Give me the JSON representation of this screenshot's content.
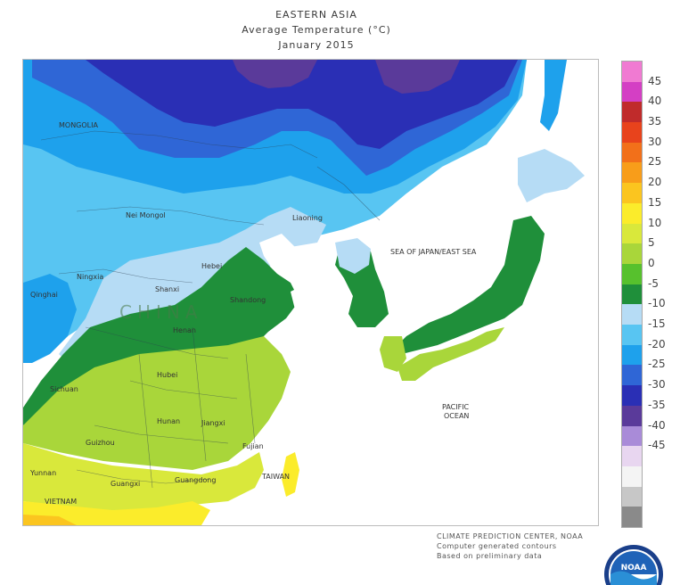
{
  "header": {
    "region": "EASTERN ASIA",
    "variable": "Average Temperature (°C)",
    "period": "January 2015"
  },
  "legend": {
    "unit": "°C",
    "ticks": [
      "45",
      "40",
      "35",
      "30",
      "25",
      "20",
      "15",
      "10",
      "5",
      "0",
      "-5",
      "-10",
      "-15",
      "-20",
      "-25",
      "-30",
      "-35",
      "-40",
      "-45"
    ],
    "bands": [
      {
        "color": "#f07ad2"
      },
      {
        "color": "#d43fc4"
      },
      {
        "color": "#c02b2b"
      },
      {
        "color": "#e8431c"
      },
      {
        "color": "#f2701a"
      },
      {
        "color": "#f89d1a"
      },
      {
        "color": "#fbc51f"
      },
      {
        "color": "#fbec2b"
      },
      {
        "color": "#d9e83b"
      },
      {
        "color": "#a9d63a"
      },
      {
        "color": "#57c12d"
      },
      {
        "color": "#1f8f3a"
      },
      {
        "color": "#b6dcf5"
      },
      {
        "color": "#58c5f2"
      },
      {
        "color": "#1ea1ec"
      },
      {
        "color": "#2f66d6"
      },
      {
        "color": "#2a2fb5"
      },
      {
        "color": "#5a3a9a"
      },
      {
        "color": "#a98bd8"
      },
      {
        "color": "#e8d6f0"
      },
      {
        "color": "#f4f4f4"
      },
      {
        "color": "#c7c7c7"
      },
      {
        "color": "#8a8a8a"
      }
    ]
  },
  "map": {
    "labels": {
      "mongolia": "MONGOLIA",
      "nei_mongol": "Nei Mongol",
      "liaoning": "Liaoning",
      "china": "CHINA",
      "qinghai": "Qinghai",
      "ningxia": "Ningxia",
      "shanxi": "Shanxi",
      "hebei": "Hebei",
      "shandong": "Shandong",
      "henan": "Henan",
      "sichuan": "Sichuan",
      "hubei": "Hubei",
      "hunan": "Hunan",
      "jiangxi": "Jiangxi",
      "guizhou": "Guizhou",
      "fujian": "Fujian",
      "yunnan": "Yunnan",
      "guangxi": "Guangxi",
      "guangdong": "Guangdong",
      "vietnam": "VIETNAM",
      "taiwan": "TAIWAN",
      "sea_of_japan": "SEA OF JAPAN/EAST SEA",
      "pacific_ocean_1": "PACIFIC",
      "pacific_ocean_2": "OCEAN"
    }
  },
  "credits": {
    "line1": "CLIMATE PREDICTION CENTER, NOAA",
    "line2": "Computer generated contours",
    "line3": "Based on preliminary data"
  },
  "logo": {
    "text": "NOAA",
    "colors": {
      "sky": "#1f63b8",
      "sea": "#2a8fd6",
      "ring": "#1a3f8a"
    }
  }
}
